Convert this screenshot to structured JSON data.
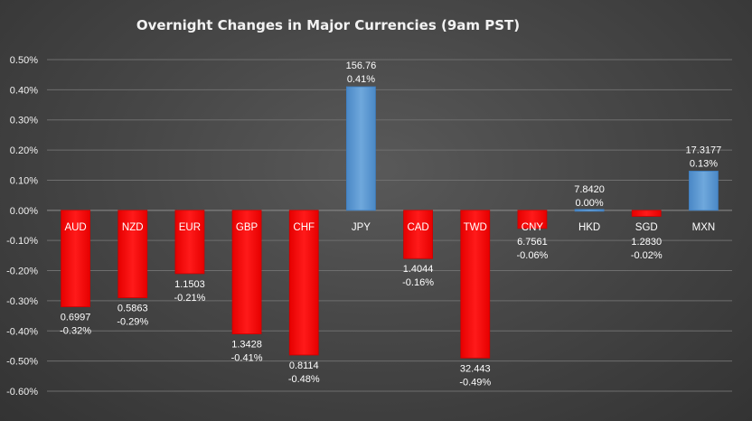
{
  "chart_data": {
    "type": "bar",
    "title": "Overnight Changes in Major Currencies (9am PST)",
    "categories": [
      "AUD",
      "NZD",
      "EUR",
      "GBP",
      "CHF",
      "JPY",
      "CAD",
      "TWD",
      "CNY",
      "HKD",
      "SGD",
      "MXN"
    ],
    "values": [
      -0.32,
      -0.29,
      -0.21,
      -0.41,
      -0.48,
      0.41,
      -0.16,
      -0.49,
      -0.06,
      0.0,
      -0.02,
      0.13
    ],
    "rates": [
      "0.6997",
      "0.5863",
      "1.1503",
      "1.3428",
      "0.8114",
      "156.76",
      "1.4044",
      "32.443",
      "6.7561",
      "7.8420",
      "1.2830",
      "17.3177"
    ],
    "value_labels": [
      "-0.32%",
      "-0.29%",
      "-0.21%",
      "-0.41%",
      "-0.48%",
      "0.41%",
      "-0.16%",
      "-0.49%",
      "-0.06%",
      "0.00%",
      "-0.02%",
      "0.13%"
    ],
    "y_ticks": [
      "0.50%",
      "0.40%",
      "0.30%",
      "0.20%",
      "0.10%",
      "0.00%",
      "-0.10%",
      "-0.20%",
      "-0.30%",
      "-0.40%",
      "-0.50%",
      "-0.60%"
    ],
    "ylim": [
      -0.6,
      0.5
    ],
    "xlabel": "",
    "ylabel": "",
    "grid": true,
    "legend": "none",
    "colors": {
      "positive": "#5b9bd5",
      "negative": "#ff0000",
      "background": "#474747",
      "text": "#ffffff"
    }
  }
}
